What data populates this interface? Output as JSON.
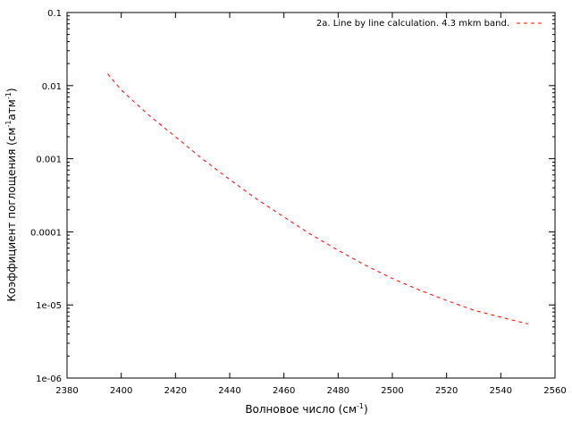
{
  "chart_data": {
    "type": "line",
    "xlabel_main": "Волновое число (см",
    "xlabel_sup": "-1",
    "xlabel_end": ")",
    "ylabel_main": "Коэффициент поглощения (см",
    "ylabel_sup1": "-1",
    "ylabel_mid": "атм",
    "ylabel_sup2": "-1",
    "ylabel_end": ")",
    "xlim": [
      2380,
      2560
    ],
    "ylim": [
      1e-06,
      0.1
    ],
    "yscale": "log",
    "x_ticks": [
      "2380",
      "2400",
      "2420",
      "2440",
      "2460",
      "2480",
      "2500",
      "2520",
      "2540",
      "2560"
    ],
    "y_ticks": [
      "1e-06",
      "1e-05",
      "0.0001",
      "0.001",
      "0.01",
      "0.1"
    ],
    "legend_position": "top-right",
    "series": [
      {
        "name": "2a. Line by line calculation. 4.3 mkm band.",
        "color": "#ff0000",
        "line_style": "dashed",
        "x": [
          2395,
          2400,
          2410,
          2420,
          2430,
          2440,
          2450,
          2460,
          2470,
          2480,
          2490,
          2500,
          2510,
          2520,
          2530,
          2540,
          2550
        ],
        "y": [
          0.0145,
          0.0087,
          0.004,
          0.002,
          0.00099,
          0.00052,
          0.00028,
          0.00016,
          9.2e-05,
          5.6e-05,
          3.5e-05,
          2.3e-05,
          1.6e-05,
          1.15e-05,
          8.5e-06,
          6.8e-06,
          5.5e-06
        ]
      }
    ]
  }
}
